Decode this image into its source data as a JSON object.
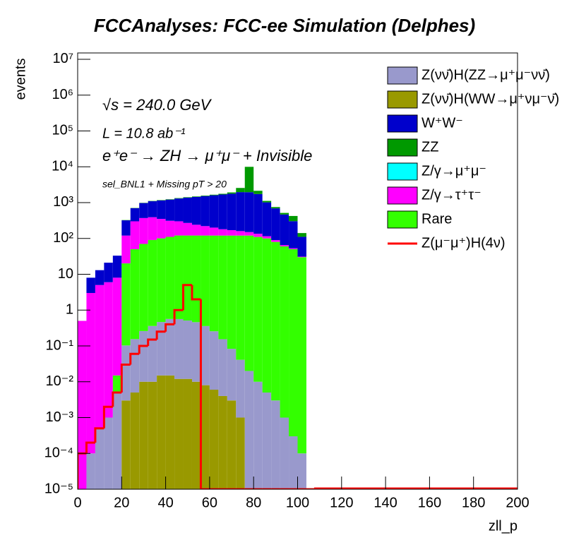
{
  "chart_data": {
    "type": "stacked-histogram",
    "title": "FCCAnalyses: FCC-ee Simulation (Delphes)",
    "x_label": "zll_p",
    "y_label": "events",
    "annotations": [
      "√s = 240.0 GeV",
      "L = 10.8 ab⁻¹",
      "e⁺e⁻ → ZH → μ⁺μ⁻ + Invisible",
      "sel_BNL1 + Missing pT > 20"
    ],
    "log_y": true,
    "bins": [
      0,
      4,
      8,
      12,
      16,
      20,
      24,
      28,
      32,
      36,
      40,
      44,
      48,
      52,
      56,
      60,
      64,
      68,
      72,
      76,
      80,
      84,
      88,
      92,
      96,
      100,
      104,
      108
    ],
    "xlim": [
      0,
      200
    ],
    "xticks": [
      0,
      20,
      40,
      60,
      80,
      100,
      120,
      140,
      160,
      180,
      200
    ],
    "ylim": [
      1e-05,
      15000000
    ],
    "yticks": [
      {
        "value": 1e-05,
        "label": "10⁻⁵"
      },
      {
        "value": 0.0001,
        "label": "10⁻⁴"
      },
      {
        "value": 0.001,
        "label": "10⁻³"
      },
      {
        "value": 0.01,
        "label": "10⁻²"
      },
      {
        "value": 0.1,
        "label": "10⁻¹"
      },
      1,
      10,
      {
        "value": 100,
        "label": "10²"
      },
      {
        "value": 1000,
        "label": "10³"
      },
      {
        "value": 10000,
        "label": "10⁴"
      },
      {
        "value": 100000,
        "label": "10⁵"
      },
      {
        "value": 1000000,
        "label": "10⁶"
      },
      {
        "value": 10000000,
        "label": "10⁷"
      }
    ],
    "series": [
      {
        "name": "Z(νν̄)H(WW→μ⁺νμ⁻ν̄)",
        "color": "#999900",
        "values": [
          0,
          0,
          0,
          0,
          0,
          0.003,
          0.005,
          0.01,
          0.01,
          0.015,
          0.015,
          0.012,
          0.012,
          0.01,
          0.008,
          0.006,
          0.004,
          0.003,
          0.001,
          0,
          0,
          0,
          0,
          0,
          0,
          0,
          0
        ]
      },
      {
        "name": "Z(νν̄)H(ZZ→μ⁺μ⁻νν̄)",
        "color": "#9999cc",
        "values": [
          0,
          0.0001,
          0.0005,
          0.001,
          0.005,
          0.1,
          0.15,
          0.25,
          0.35,
          0.45,
          0.55,
          0.55,
          0.5,
          0.45,
          0.35,
          0.25,
          0.15,
          0.08,
          0.04,
          0.02,
          0.01,
          0.005,
          0.003,
          0.001,
          0.0003,
          0.0001,
          0
        ]
      },
      {
        "name": "Rare",
        "color": "#33ff00",
        "values": [
          0,
          0,
          0,
          0,
          0.01,
          20,
          50,
          70,
          90,
          100,
          110,
          120,
          120,
          120,
          120,
          120,
          120,
          120,
          120,
          120,
          110,
          100,
          80,
          60,
          50,
          30,
          0
        ]
      },
      {
        "name": "Z/γ→μ⁺μ⁻",
        "color": "#00ffff",
        "values": [
          0,
          0,
          0,
          0,
          0,
          0,
          0,
          0,
          0,
          0,
          0,
          0,
          0,
          0,
          0,
          0,
          0,
          0,
          0,
          0,
          0,
          0,
          0,
          0,
          0,
          0,
          0
        ]
      },
      {
        "name": "Z/γ→τ⁺τ⁻",
        "color": "#ff00ff",
        "values": [
          0.5,
          3,
          5,
          6,
          8,
          100,
          250,
          300,
          300,
          250,
          200,
          180,
          150,
          120,
          100,
          80,
          60,
          50,
          40,
          30,
          25,
          15,
          10,
          5,
          3,
          1,
          0
        ]
      },
      {
        "name": "W⁺W⁻",
        "color": "#0000cc",
        "values": [
          0,
          5,
          8,
          15,
          25,
          200,
          400,
          600,
          700,
          800,
          900,
          1000,
          1100,
          1200,
          1300,
          1400,
          1500,
          1600,
          1800,
          1800,
          1600,
          900,
          600,
          400,
          250,
          80,
          0
        ]
      },
      {
        "name": "ZZ",
        "color": "#009900",
        "values": [
          0,
          0,
          0,
          0,
          0,
          5,
          10,
          15,
          20,
          25,
          30,
          35,
          40,
          45,
          50,
          60,
          80,
          150,
          600,
          8000,
          400,
          100,
          60,
          50,
          120,
          30,
          0
        ]
      }
    ],
    "legend_order": [
      1,
      0,
      5,
      6,
      3,
      4,
      2
    ],
    "line_series": {
      "name": "Z(μ⁻μ⁺)H(4ν)",
      "color": "#ff0000",
      "values": [
        0.0001,
        0.0002,
        0.0005,
        0.002,
        0.005,
        0.03,
        0.06,
        0.1,
        0.15,
        0.25,
        0.4,
        1,
        5,
        2,
        0,
        0,
        0,
        0,
        0,
        0,
        0,
        0,
        0,
        0,
        0,
        0,
        0
      ]
    },
    "legend_position": "upper right"
  }
}
